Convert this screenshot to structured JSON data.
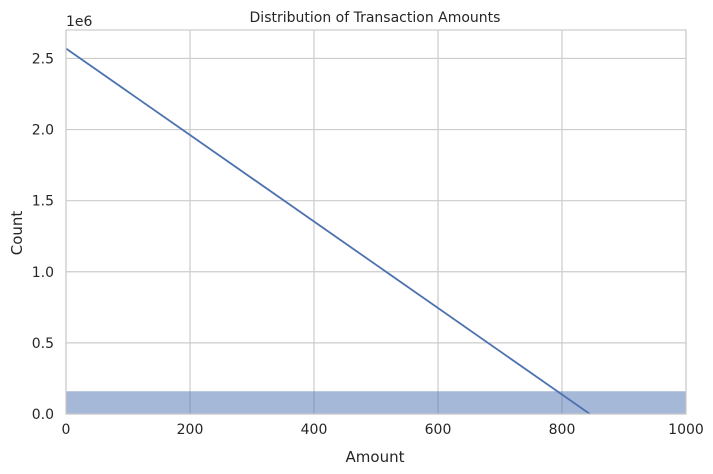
{
  "chart_data": {
    "type": "area",
    "title": "Distribution of Transaction Amounts",
    "xlabel": "Amount",
    "ylabel": "Count",
    "y_offset_label": "1e6",
    "xlim": [
      0,
      1000
    ],
    "ylim": [
      0,
      2.7
    ],
    "y_scale_multiplier": 1000000,
    "x_ticks": [
      0,
      200,
      400,
      600,
      800,
      1000
    ],
    "x_tick_labels": [
      "0",
      "200",
      "400",
      "600",
      "800",
      "1000"
    ],
    "y_ticks": [
      0,
      0.5,
      1.0,
      1.5,
      2.0,
      2.5
    ],
    "y_tick_labels": [
      "0.0",
      "0.5",
      "1.0",
      "1.5",
      "2.0",
      "2.5"
    ],
    "grid": true,
    "histogram": {
      "bins": [
        {
          "x0": 0,
          "x1": 1000,
          "count": 0.16
        }
      ],
      "color": "#4c72b0",
      "opacity": 0.5
    },
    "kde_line": {
      "color": "#4c72b0",
      "points": [
        {
          "x": 0,
          "y": 2.57
        },
        {
          "x": 845,
          "y": 0.0
        }
      ]
    }
  }
}
